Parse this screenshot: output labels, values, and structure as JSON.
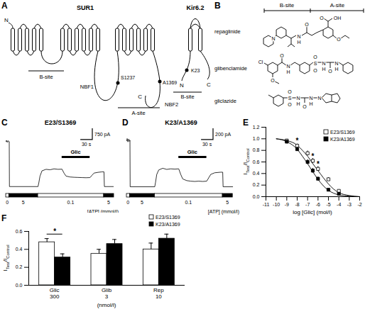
{
  "figure": {
    "panel_A": {
      "panel": "A",
      "sur1": "SUR1",
      "kir": "Kir6.2",
      "sur1_n": "N",
      "sur1_c": "C",
      "kir_n": "N",
      "kir_c": "C",
      "nbf1": "NBF1",
      "nbf2": "NBF2",
      "residues": [
        "S1237",
        "A1369",
        "K23"
      ],
      "b_site_labels": [
        "B-site",
        "B-site"
      ],
      "a_site": "A-site"
    },
    "panel_B": {
      "panel": "B",
      "headers": [
        "B-site",
        "A-site"
      ],
      "molecules": [
        {
          "name": "repaglinide",
          "atoms": [
            "N",
            "N",
            "H",
            "O",
            "O",
            "OH",
            "O"
          ]
        },
        {
          "name": "glibenclamide",
          "atoms": [
            "Cl",
            "O",
            "O",
            "N",
            "H",
            "S",
            "O",
            "O",
            "N",
            "H",
            "O",
            "N",
            "H"
          ]
        },
        {
          "name": "gliclazide",
          "atoms": [
            "S",
            "O",
            "O",
            "N",
            "H",
            "O",
            "N",
            "H",
            "N"
          ]
        }
      ]
    }
  },
  "chart_data": [
    {
      "panel": "C",
      "type": "line",
      "title": "E23/S1369",
      "tick_labels": false,
      "x": [
        0,
        1,
        3,
        5,
        7,
        8,
        8.5,
        80,
        82,
        85,
        90,
        100,
        110,
        120,
        130,
        140,
        145,
        150,
        160,
        170,
        180,
        190,
        200,
        210,
        215,
        220,
        230,
        240,
        245,
        246,
        270
      ],
      "values": [
        3000,
        3080,
        2950,
        3060,
        2980,
        3000,
        0,
        0,
        250,
        700,
        1050,
        1150,
        1120,
        1180,
        1150,
        1160,
        900,
        700,
        640,
        620,
        610,
        600,
        590,
        600,
        750,
        900,
        950,
        980,
        980,
        0,
        0
      ],
      "xlim": [
        0,
        270
      ],
      "ylim": [
        -200,
        3200
      ],
      "scale_bar": {
        "y": 750,
        "y_label": "750 pA",
        "x": 30,
        "x_label": "30 s"
      },
      "drug": {
        "label": "Glic",
        "start": 140,
        "end": 210
      },
      "atp": {
        "label": "[ATP] (mmol/l)",
        "segments": [
          {
            "label": "0",
            "start": 0,
            "end": 8,
            "color": "white"
          },
          {
            "label": "5",
            "start": 8,
            "end": 80,
            "color": "black"
          },
          {
            "label": "0.1",
            "start": 80,
            "end": 245,
            "color": "white"
          },
          {
            "label": "5",
            "start": 245,
            "end": 270,
            "color": "black"
          }
        ]
      }
    },
    {
      "panel": "D",
      "type": "line",
      "title": "K23/A1369",
      "tick_labels": false,
      "x": [
        0,
        1,
        3,
        5,
        7,
        8,
        8.5,
        70,
        72,
        75,
        80,
        90,
        100,
        110,
        120,
        130,
        135,
        140,
        150,
        160,
        170,
        180,
        190,
        200,
        205,
        210,
        220,
        235,
        240,
        241,
        265
      ],
      "values": [
        820,
        860,
        800,
        850,
        810,
        830,
        0,
        0,
        80,
        220,
        300,
        330,
        310,
        320,
        315,
        320,
        220,
        140,
        110,
        100,
        95,
        100,
        95,
        100,
        160,
        220,
        250,
        260,
        260,
        0,
        0
      ],
      "xlim": [
        0,
        270
      ],
      "ylim": [
        -50,
        860
      ],
      "scale_bar": {
        "y": 200,
        "y_label": "200 pA",
        "x": 30,
        "x_label": "30 s"
      },
      "drug": {
        "label": "Glic",
        "start": 130,
        "end": 200
      },
      "atp": {
        "label": "[ATP] (mmol/l)",
        "segments": [
          {
            "label": "0",
            "start": 0,
            "end": 8,
            "color": "white"
          },
          {
            "label": "5",
            "start": 8,
            "end": 70,
            "color": "black"
          },
          {
            "label": "0.1",
            "start": 70,
            "end": 240,
            "color": "white"
          },
          {
            "label": "5",
            "start": 240,
            "end": 265,
            "color": "black"
          }
        ]
      }
    },
    {
      "panel": "E",
      "type": "scatter",
      "xlabel": "log [Glic] (mol/l)",
      "ylabel": [
        {
          "text": "I"
        },
        {
          "text": "Test",
          "sub": true
        },
        {
          "text": "/I"
        },
        {
          "text": "Control",
          "sub": true
        }
      ],
      "xlim": [
        -11,
        -2
      ],
      "xticks": [
        -11,
        -10,
        -9,
        -8,
        -7,
        -6,
        -5,
        -4,
        -3,
        -2
      ],
      "ylim": [
        0,
        1.2
      ],
      "yticks": [
        {
          "value": 0,
          "label": "0.0"
        },
        0.2,
        0.4,
        0.6,
        0.8,
        {
          "value": 1,
          "label": "1.0"
        },
        1.2
      ],
      "legend": "top-right",
      "series": [
        {
          "name": "E23/S1369",
          "color": "white",
          "marker": "square",
          "x": [
            -9,
            -8,
            -7,
            -6.5,
            -6,
            -5,
            -4
          ],
          "values": [
            0.97,
            0.88,
            0.75,
            0.62,
            0.48,
            0.3,
            0.1
          ],
          "errors": [
            0.02,
            0.03,
            0.04,
            0.04,
            0.04,
            0.03,
            0.02
          ],
          "fit": {
            "x": [
              -10,
              -9,
              -8,
              -7.5,
              -7,
              -6.5,
              -6,
              -5.5,
              -5,
              -4.5,
              -4,
              -3,
              -2
            ],
            "values": [
              1.0,
              0.97,
              0.89,
              0.8,
              0.7,
              0.57,
              0.45,
              0.33,
              0.22,
              0.13,
              0.07,
              0.02,
              0.0
            ]
          }
        },
        {
          "name": "K23/A1369",
          "color": "black",
          "marker": "square",
          "x": [
            -9,
            -8,
            -7,
            -6.5,
            -6,
            -5,
            -4
          ],
          "values": [
            0.95,
            0.82,
            0.6,
            0.45,
            0.31,
            0.12,
            0.05
          ],
          "errors": [
            0.02,
            0.03,
            0.04,
            0.04,
            0.03,
            0.02,
            0.01
          ],
          "fit": {
            "x": [
              -10,
              -9,
              -8,
              -7.5,
              -7,
              -6.5,
              -6,
              -5.5,
              -5,
              -4.5,
              -4,
              -3,
              -2
            ],
            "values": [
              1.0,
              0.95,
              0.82,
              0.7,
              0.57,
              0.43,
              0.3,
              0.19,
              0.11,
              0.06,
              0.03,
              0.01,
              0.0
            ]
          }
        }
      ],
      "annotations": [
        {
          "x": -8,
          "y": 0.96,
          "text": "*"
        },
        {
          "x": -6.5,
          "y": 0.7,
          "text": "*"
        },
        {
          "x": -6,
          "y": 0.56,
          "text": "*"
        }
      ]
    },
    {
      "panel": "F",
      "type": "bar",
      "categories": [
        "Glic\n300",
        "Glib\n3",
        "Rep\n10"
      ],
      "xlabel": "(nmol/l)",
      "ylabel": [
        {
          "text": "I"
        },
        {
          "text": "Test",
          "sub": true
        },
        {
          "text": "/I"
        },
        {
          "text": "Control",
          "sub": true
        }
      ],
      "ylim": [
        0,
        0.6
      ],
      "yticks": [
        {
          "value": 0,
          "label": "0.0"
        },
        0.2,
        0.4,
        0.6
      ],
      "legend": "top-right",
      "series": [
        {
          "name": "E23/S1369",
          "color": "white",
          "values": [
            0.48,
            0.35,
            0.4
          ],
          "errors": [
            0.04,
            0.05,
            0.07
          ]
        },
        {
          "name": "K23/A1369",
          "color": "black",
          "values": [
            0.31,
            0.46,
            0.52
          ],
          "errors": [
            0.04,
            0.05,
            0.05
          ]
        }
      ],
      "significance": [
        {
          "category": "Glic\n300",
          "y": 0.57,
          "label": "*"
        }
      ]
    }
  ]
}
